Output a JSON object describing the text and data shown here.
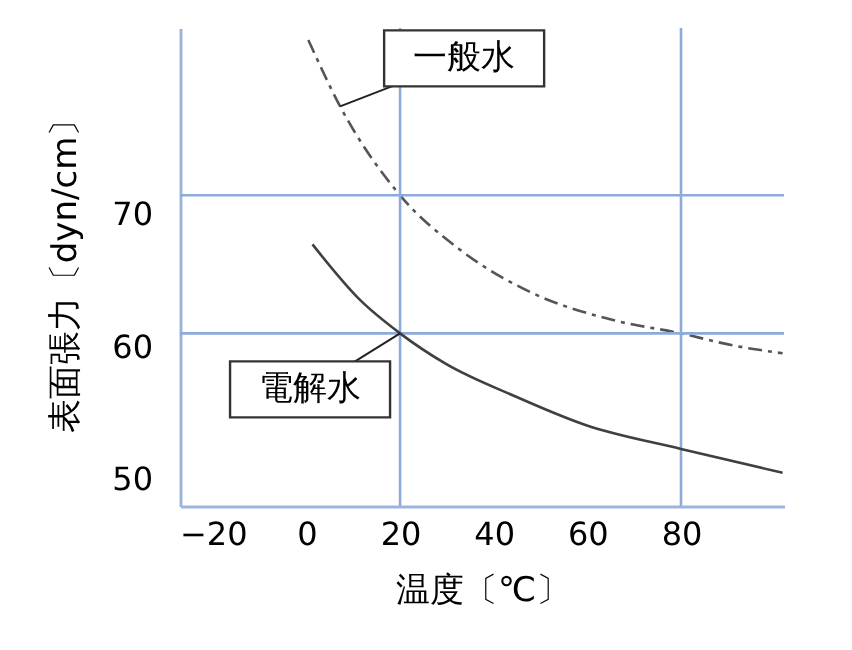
{
  "chart_data": {
    "type": "line",
    "xlabel": "温度〔℃〕",
    "ylabel": "表面張力〔dyn/cm〕",
    "xlim": [
      -27,
      102
    ],
    "ylim": [
      48,
      84
    ],
    "xticks": [
      {
        "value": -20,
        "label": "−20"
      },
      0,
      20,
      40,
      60,
      80
    ],
    "yticks": [
      50,
      60,
      70
    ],
    "grid": false,
    "marker": "none",
    "series": [
      {
        "name": "一般水",
        "color": "#555555",
        "line_style": "dashed",
        "x": [
          0.4,
          7.2,
          20,
          32.8,
          48.5,
          65.5,
          80,
          91,
          101.7
        ],
        "values": [
          83.1,
          78.1,
          71.4,
          67.3,
          64.0,
          62.0,
          61.0,
          60.1,
          59.5
        ]
      },
      {
        "name": "電解水",
        "color": "#404040",
        "line_style": "solid",
        "x": [
          1.3,
          11.5,
          20,
          29.8,
          44.3,
          59.6,
          80,
          101.7
        ],
        "values": [
          67.7,
          63.5,
          61.0,
          58.7,
          56.3,
          54.1,
          52.3,
          50.5
        ]
      }
    ],
    "ref_lines": [
      {
        "axis": "x",
        "value": 20,
        "color": "#8eaadb"
      },
      {
        "axis": "x",
        "value": 80,
        "color": "#8eaadb"
      },
      {
        "axis": "y",
        "value": 71.4,
        "color": "#8eaadb"
      },
      {
        "axis": "y",
        "value": 61,
        "color": "#8eaadb"
      }
    ]
  }
}
